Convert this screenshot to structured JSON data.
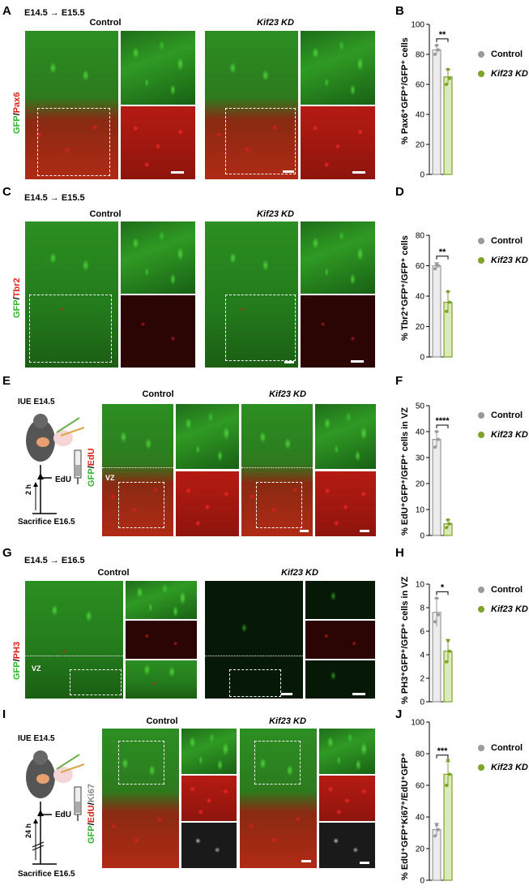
{
  "panels": [
    {
      "letter": "A",
      "timeline": "E14.5 → E15.5",
      "control": "Control",
      "kd": "Kif23 KD",
      "stain": [
        "GFP",
        "/",
        "Pax6"
      ]
    },
    {
      "letter": "C",
      "timeline": "E14.5 → E15.5",
      "control": "Control",
      "kd": "Kif23 KD",
      "stain": [
        "GFP",
        "/",
        "Tbr2"
      ]
    },
    {
      "letter": "E",
      "control": "Control",
      "kd": "Kif23 KD",
      "stain": [
        "GFP",
        "/",
        "EdU"
      ],
      "vz": "VZ",
      "schema": {
        "top": "IUE E14.5",
        "mid": "EdU",
        "dur": "2 h",
        "bottom": "Sacrifice E16.5"
      }
    },
    {
      "letter": "G",
      "timeline": "E14.5 → E16.5",
      "control": "Control",
      "kd": "Kif23 KD",
      "stain": [
        "GFP",
        "/",
        "PH3"
      ],
      "vz": "VZ"
    },
    {
      "letter": "I",
      "control": "Control",
      "kd": "Kif23 KD",
      "stain": [
        "GFP",
        "/",
        "EdU",
        "/",
        "Ki67"
      ],
      "schema": {
        "top": "IUE E14.5",
        "mid": "EdU",
        "dur": "24 h",
        "bottom": "Sacrifice E16.5"
      }
    }
  ],
  "colors": {
    "control": "#9a9a9a",
    "kd": "#7ea22a",
    "controlFill": "#ececec",
    "kdFill": "#d9ebb8"
  },
  "chart_data": [
    {
      "letter": "B",
      "type": "bar",
      "categories": [
        "Control",
        "Kif23 KD"
      ],
      "values": [
        83,
        65
      ],
      "points": [
        [
          80,
          86,
          83
        ],
        [
          60,
          70,
          64
        ]
      ],
      "err": [
        3,
        5
      ],
      "ylim": [
        0,
        100
      ],
      "ticks": [
        0,
        20,
        40,
        60,
        80,
        100
      ],
      "ylabel": "% Pax6⁺GFP⁺/GFP⁺ cells",
      "sig": "**",
      "legend": [
        "Control",
        "Kif23 KD"
      ]
    },
    {
      "letter": "D",
      "type": "bar",
      "categories": [
        "Control",
        "Kif23 KD"
      ],
      "values": [
        60,
        36
      ],
      "points": [
        [
          58,
          61,
          60
        ],
        [
          30,
          43,
          36
        ]
      ],
      "err": [
        2,
        7
      ],
      "ylim": [
        0,
        80
      ],
      "ticks": [
        0,
        20,
        40,
        60,
        80
      ],
      "ylabel": "% Tbr2⁺GFP⁺/GFP⁺ cells",
      "sig": "**",
      "legend": [
        "Control",
        "Kif23 KD"
      ]
    },
    {
      "letter": "F",
      "type": "bar",
      "categories": [
        "Control",
        "Kif23 KD"
      ],
      "values": [
        37,
        4.5
      ],
      "points": [
        [
          34,
          40,
          37
        ],
        [
          3,
          6,
          4.5
        ]
      ],
      "err": [
        3,
        1.5
      ],
      "ylim": [
        0,
        50
      ],
      "ticks": [
        0,
        10,
        20,
        30,
        40,
        50
      ],
      "ylabel": "% EdU⁺GFP⁺/GFP⁺ cells in VZ",
      "sig": "****",
      "legend": [
        "Control",
        "Kif23 KD"
      ]
    },
    {
      "letter": "H",
      "type": "bar",
      "categories": [
        "Control",
        "Kif23 KD"
      ],
      "values": [
        7.6,
        4.3
      ],
      "points": [
        [
          6.8,
          8.8,
          7.4
        ],
        [
          3.4,
          5.2,
          4.3
        ]
      ],
      "err": [
        1.2,
        1.0
      ],
      "ylim": [
        0,
        10
      ],
      "ticks": [
        0,
        2,
        4,
        6,
        8,
        10
      ],
      "ylabel": "% PH3⁺GFP⁺/GFP⁺ cells in VZ",
      "sig": "*",
      "legend": [
        "Control",
        "Kif23 KD"
      ]
    },
    {
      "letter": "J",
      "type": "bar",
      "categories": [
        "Control",
        "Kif23 KD"
      ],
      "values": [
        32,
        67
      ],
      "points": [
        [
          28,
          35,
          32
        ],
        [
          60,
          76,
          67
        ]
      ],
      "err": [
        4,
        8
      ],
      "ylim": [
        0,
        100
      ],
      "ticks": [
        0,
        20,
        40,
        60,
        80,
        100
      ],
      "ylabel": "% EdU⁺GFP⁺Ki67⁺/EdU⁺GFP⁺",
      "sig": "***",
      "legend": [
        "Control",
        "Kif23 KD"
      ]
    }
  ]
}
